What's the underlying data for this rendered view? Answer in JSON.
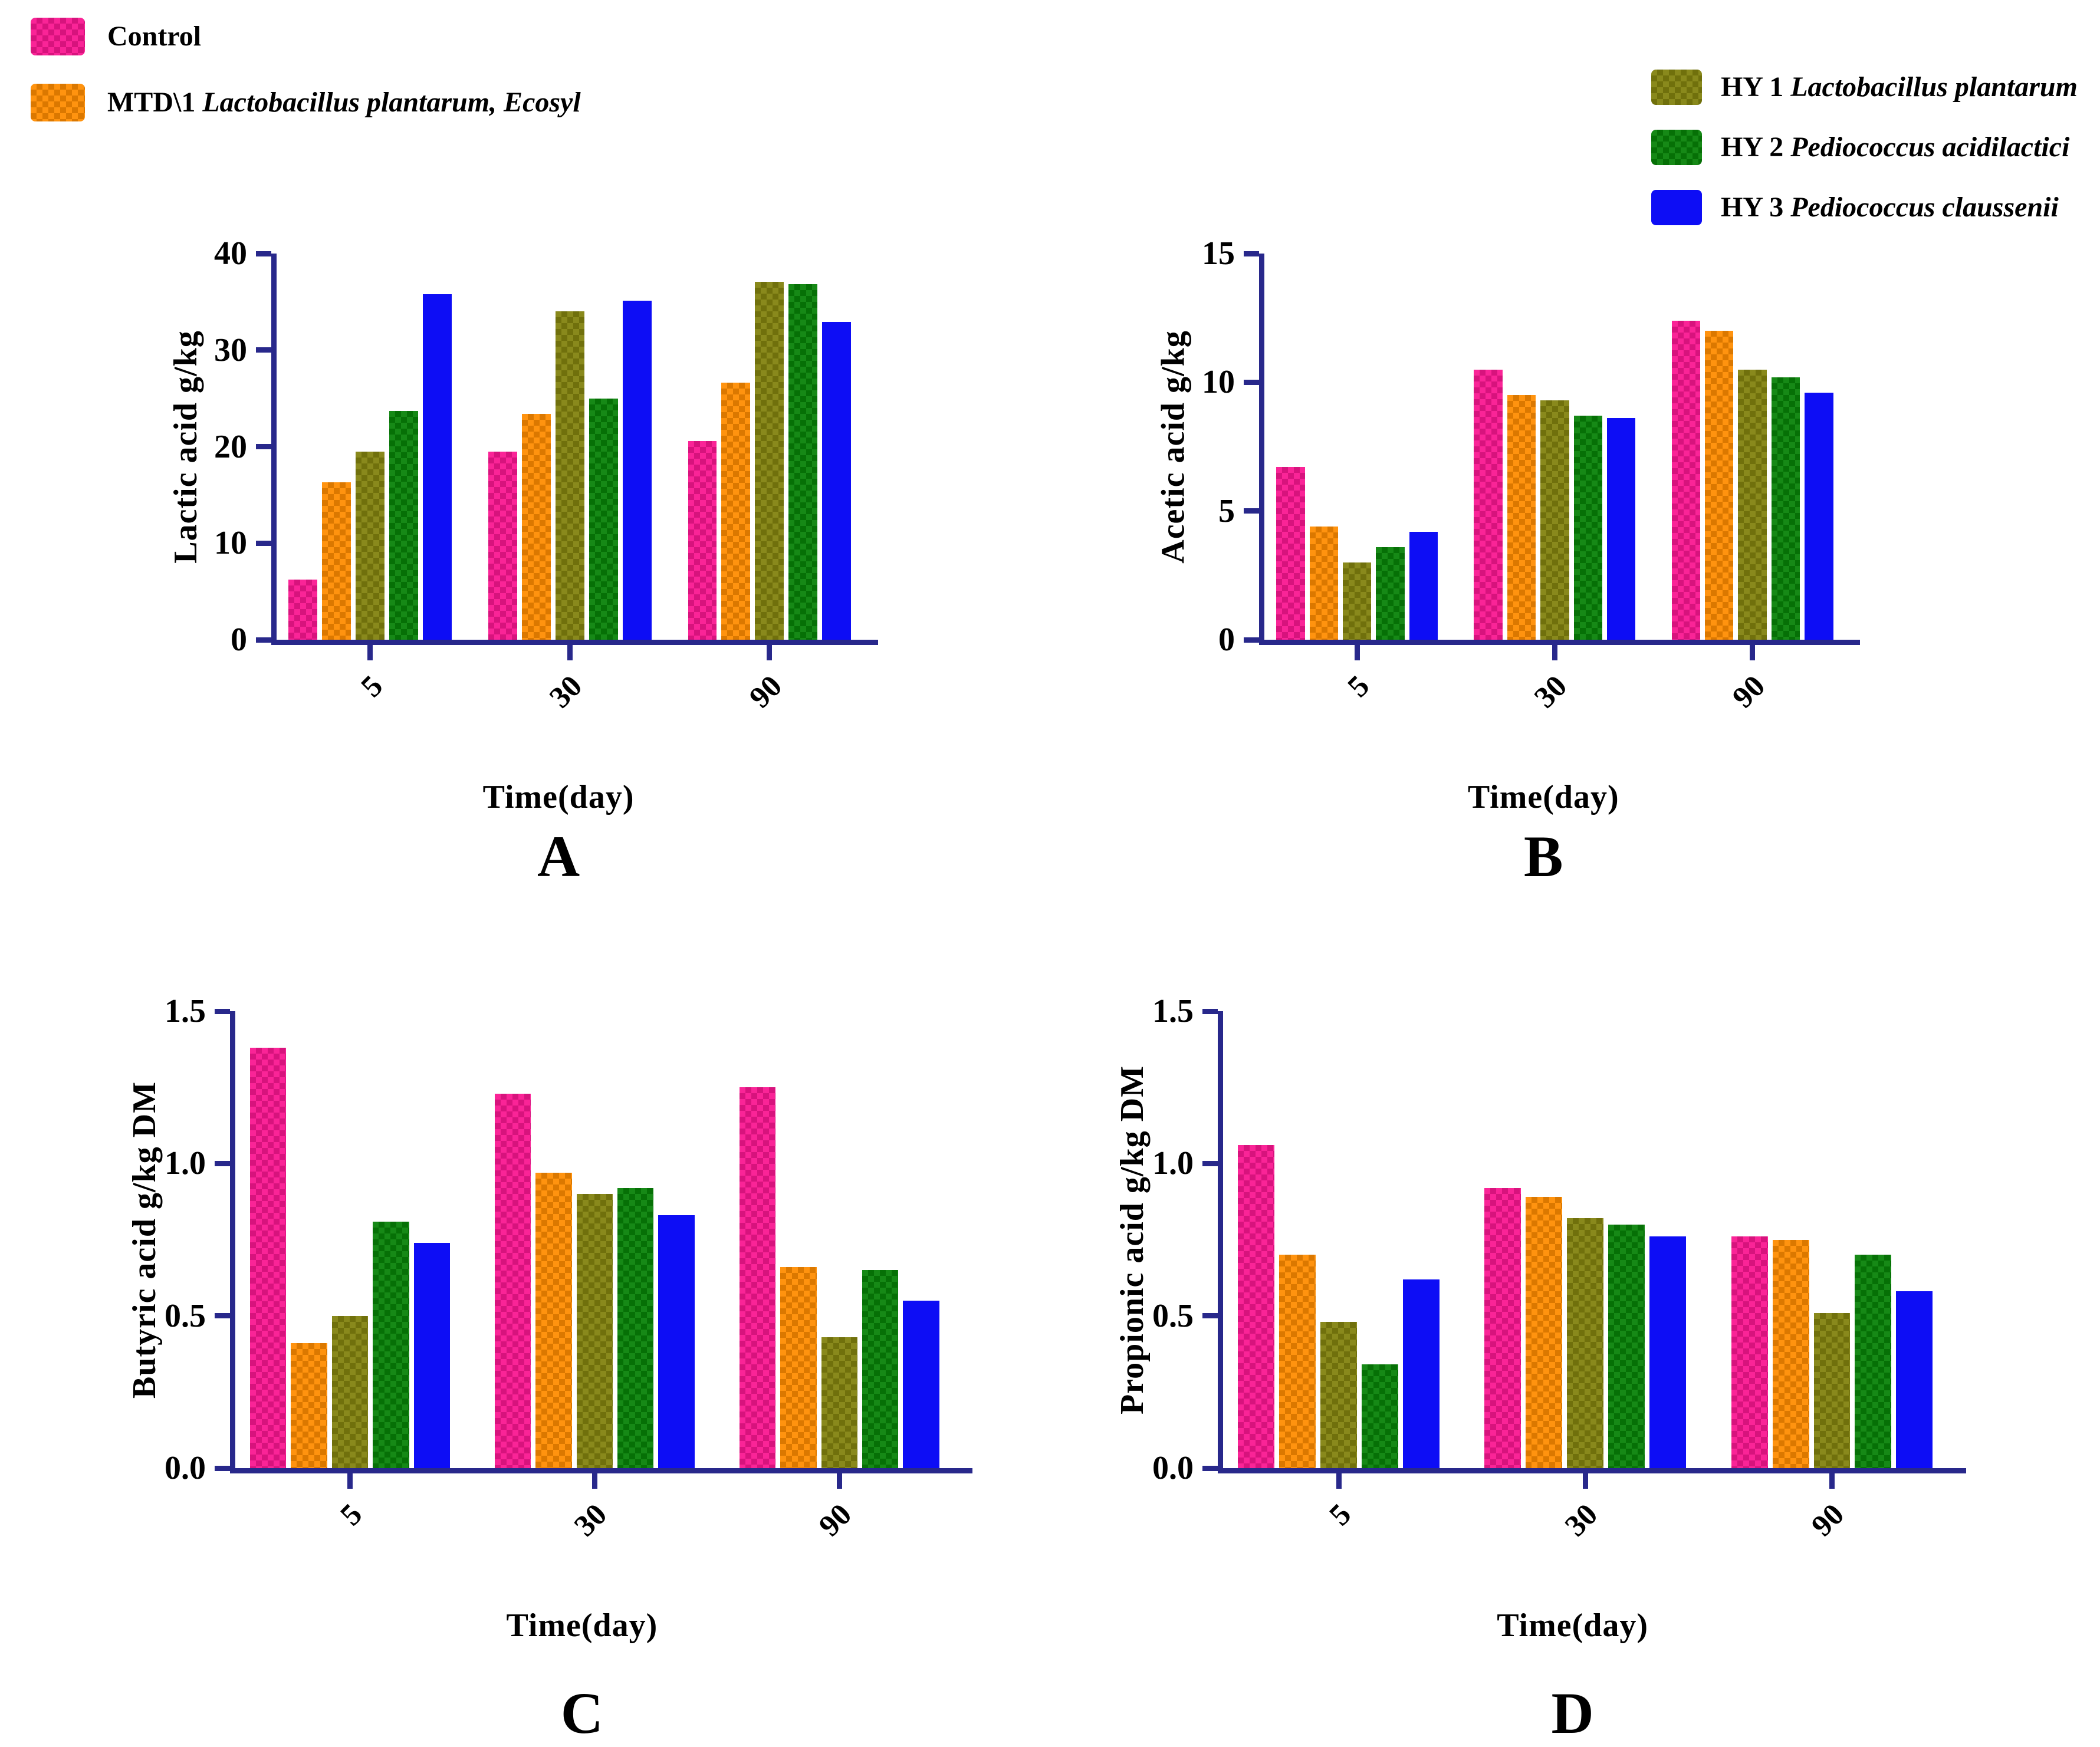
{
  "colors": {
    "control": "#fa1691",
    "mtd": "#ff8c00",
    "hy1": "#82820e",
    "hy2": "#078207",
    "hy3": "#0d0df5",
    "axis": "#28288b",
    "text": "#000000",
    "background": "#ffffff"
  },
  "legend_left": [
    {
      "color_key": "control",
      "plain": "Control",
      "italic": ""
    },
    {
      "color_key": "mtd",
      "plain": "MTD\\1",
      "italic": "Lactobacillus plantarum, Ecosyl"
    }
  ],
  "legend_right": [
    {
      "color_key": "hy1",
      "plain": "HY 1",
      "italic": "Lactobacillus plantarum"
    },
    {
      "color_key": "hy2",
      "plain": "HY 2",
      "italic": "Pediococcus acidilactici"
    },
    {
      "color_key": "hy3",
      "plain": "HY 3",
      "italic": "Pediococcus claussenii"
    }
  ],
  "chart_data": [
    {
      "panel_label": "A",
      "type": "bar",
      "title": "",
      "ylabel": "Lactic acid g/kg",
      "xlabel": "Time(day)",
      "categories": [
        "5",
        "30",
        "90"
      ],
      "ylim": [
        0,
        40
      ],
      "yticks": [
        {
          "value": 0,
          "label": "0"
        },
        {
          "value": 10,
          "label": "10"
        },
        {
          "value": 20,
          "label": "20"
        },
        {
          "value": 30,
          "label": "30"
        },
        {
          "value": 40,
          "label": "40"
        }
      ],
      "series": [
        {
          "name": "Control",
          "color_key": "control",
          "values": [
            6.2,
            19.5,
            20.6
          ]
        },
        {
          "name": "MTD\\1 Lactobacillus plantarum, Ecosyl",
          "color_key": "mtd",
          "values": [
            16.3,
            23.4,
            26.6
          ]
        },
        {
          "name": "HY 1 Lactobacillus plantarum",
          "color_key": "hy1",
          "values": [
            19.5,
            34.0,
            37.1
          ]
        },
        {
          "name": "HY 2 Pediococcus acidilactici",
          "color_key": "hy2",
          "values": [
            23.7,
            25.0,
            36.8
          ]
        },
        {
          "name": "HY 3 Pediococcus claussenii",
          "color_key": "hy3",
          "values": [
            35.8,
            35.1,
            32.9
          ]
        }
      ]
    },
    {
      "panel_label": "B",
      "type": "bar",
      "title": "",
      "ylabel": "Acetic acid g/kg",
      "xlabel": "Time(day)",
      "categories": [
        "5",
        "30",
        "90"
      ],
      "ylim": [
        0,
        15
      ],
      "yticks": [
        {
          "value": 0,
          "label": "0"
        },
        {
          "value": 5,
          "label": "5"
        },
        {
          "value": 10,
          "label": "10"
        },
        {
          "value": 15,
          "label": "15"
        }
      ],
      "series": [
        {
          "name": "Control",
          "color_key": "control",
          "values": [
            6.7,
            10.5,
            12.4
          ]
        },
        {
          "name": "MTD\\1 Lactobacillus plantarum, Ecosyl",
          "color_key": "mtd",
          "values": [
            4.4,
            9.5,
            12.0
          ]
        },
        {
          "name": "HY 1 Lactobacillus plantarum",
          "color_key": "hy1",
          "values": [
            3.0,
            9.3,
            10.5
          ]
        },
        {
          "name": "HY 2 Pediococcus acidilactici",
          "color_key": "hy2",
          "values": [
            3.6,
            8.7,
            10.2
          ]
        },
        {
          "name": "HY 3 Pediococcus claussenii",
          "color_key": "hy3",
          "values": [
            4.2,
            8.6,
            9.6
          ]
        }
      ]
    },
    {
      "panel_label": "C",
      "type": "bar",
      "title": "",
      "ylabel": "Butyric acid g/kg DM",
      "xlabel": "Time(day)",
      "categories": [
        "5",
        "30",
        "90"
      ],
      "ylim": [
        0,
        1.5
      ],
      "yticks": [
        {
          "value": 0,
          "label": "0.0"
        },
        {
          "value": 0.5,
          "label": "0.5"
        },
        {
          "value": 1.0,
          "label": "1.0"
        },
        {
          "value": 1.5,
          "label": "1.5"
        }
      ],
      "series": [
        {
          "name": "Control",
          "color_key": "control",
          "values": [
            1.38,
            1.23,
            1.25
          ]
        },
        {
          "name": "MTD\\1 Lactobacillus plantarum, Ecosyl",
          "color_key": "mtd",
          "values": [
            0.41,
            0.97,
            0.66
          ]
        },
        {
          "name": "HY 1 Lactobacillus plantarum",
          "color_key": "hy1",
          "values": [
            0.5,
            0.9,
            0.43
          ]
        },
        {
          "name": "HY 2 Pediococcus acidilactici",
          "color_key": "hy2",
          "values": [
            0.81,
            0.92,
            0.65
          ]
        },
        {
          "name": "HY 3 Pediococcus claussenii",
          "color_key": "hy3",
          "values": [
            0.74,
            0.83,
            0.55
          ]
        }
      ]
    },
    {
      "panel_label": "D",
      "type": "bar",
      "title": "",
      "ylabel": "Propionic acid g/kg DM",
      "xlabel": "Time(day)",
      "categories": [
        "5",
        "30",
        "90"
      ],
      "ylim": [
        0,
        1.5
      ],
      "yticks": [
        {
          "value": 0,
          "label": "0.0"
        },
        {
          "value": 0.5,
          "label": "0.5"
        },
        {
          "value": 1.0,
          "label": "1.0"
        },
        {
          "value": 1.5,
          "label": "1.5"
        }
      ],
      "series": [
        {
          "name": "Control",
          "color_key": "control",
          "values": [
            1.06,
            0.92,
            0.76
          ]
        },
        {
          "name": "MTD\\1 Lactobacillus plantarum, Ecosyl",
          "color_key": "mtd",
          "values": [
            0.7,
            0.89,
            0.75
          ]
        },
        {
          "name": "HY 1 Lactobacillus plantarum",
          "color_key": "hy1",
          "values": [
            0.48,
            0.82,
            0.51
          ]
        },
        {
          "name": "HY 2 Pediococcus acidilactici",
          "color_key": "hy2",
          "values": [
            0.34,
            0.8,
            0.7
          ]
        },
        {
          "name": "HY 3 Pediococcus claussenii",
          "color_key": "hy3",
          "values": [
            0.62,
            0.76,
            0.58
          ]
        }
      ]
    }
  ]
}
